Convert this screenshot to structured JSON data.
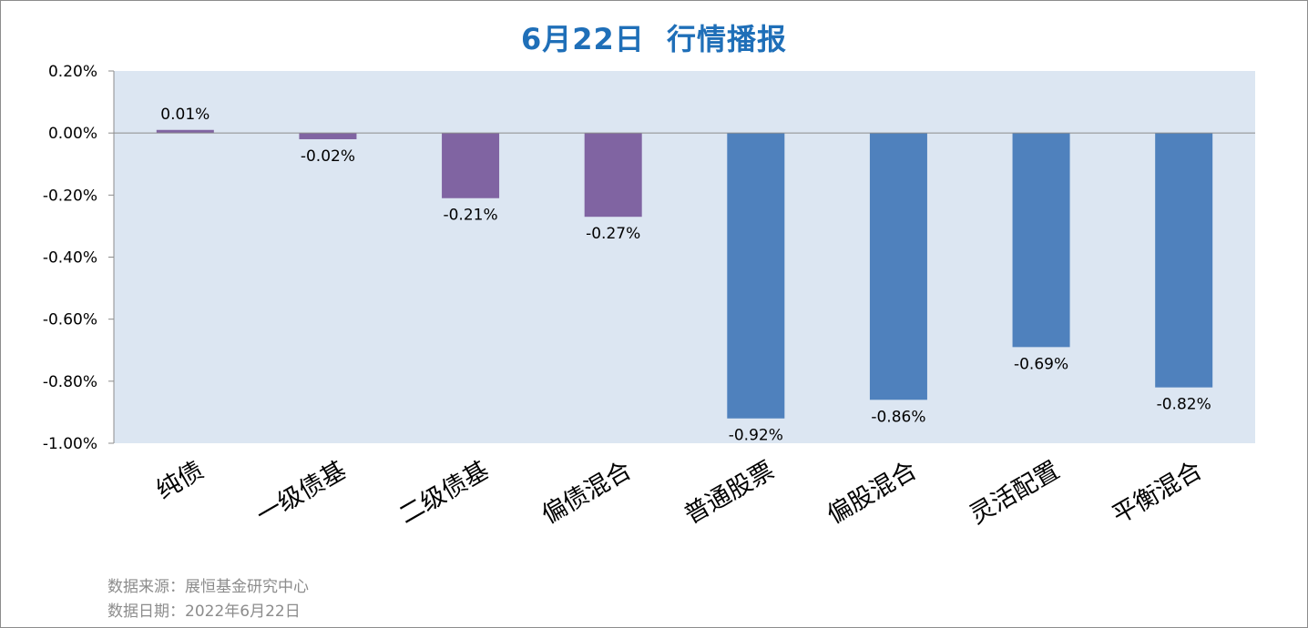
{
  "chart_data": {
    "type": "bar",
    "title": "6月22日  行情播报",
    "categories": [
      "纯债",
      "一级债基",
      "二级债基",
      "偏债混合",
      "普通股票",
      "偏股混合",
      "灵活配置",
      "平衡混合"
    ],
    "values": [
      0.01,
      -0.02,
      -0.21,
      -0.27,
      -0.92,
      -0.86,
      -0.69,
      -0.82
    ],
    "data_labels": [
      "0.01%",
      "-0.02%",
      "-0.21%",
      "-0.27%",
      "-0.92%",
      "-0.86%",
      "-0.69%",
      "-0.82%"
    ],
    "bar_colors": [
      "#8064a2",
      "#8064a2",
      "#8064a2",
      "#8064a2",
      "#4f81bd",
      "#4f81bd",
      "#4f81bd",
      "#4f81bd"
    ],
    "ylim": [
      -1.0,
      0.2
    ],
    "yticks": [
      0.2,
      0.0,
      -0.2,
      -0.4,
      -0.6,
      -0.8,
      -1.0
    ],
    "ytick_labels": [
      "0.20%",
      "0.00%",
      "-0.20%",
      "-0.40%",
      "-0.60%",
      "-0.80%",
      "-1.00%"
    ],
    "xlabel": "",
    "ylabel": "",
    "grid": false,
    "legend": "none",
    "plot_background": "#dce6f2",
    "title_color": "#1f6fb8"
  },
  "footer": {
    "source": "数据来源：展恒基金研究中心",
    "date": "数据日期：2022年6月22日"
  }
}
